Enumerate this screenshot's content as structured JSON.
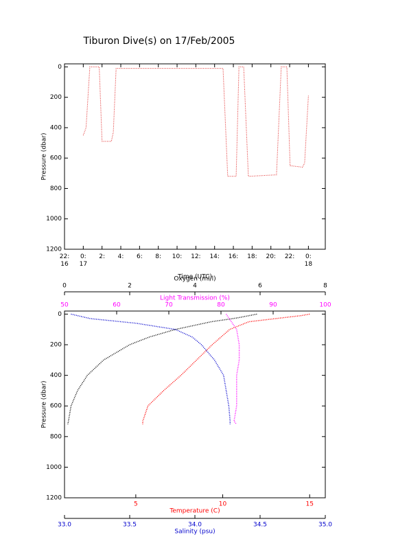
{
  "chart_data": [
    {
      "type": "line",
      "title": "Tiburon Dive(s) on 17/Feb/2005",
      "xlabel": "Time (UTC)",
      "ylabel": "Pressure (dbar)",
      "xlim": [
        0,
        27.8
      ],
      "xticks": [
        {
          "value": 0,
          "label": "22:\n16"
        },
        {
          "value": 2,
          "label": "0:\n17"
        },
        {
          "value": 4,
          "label": "2:"
        },
        {
          "value": 6,
          "label": "4:"
        },
        {
          "value": 8,
          "label": "6:"
        },
        {
          "value": 10,
          "label": "8:"
        },
        {
          "value": 12,
          "label": "10:"
        },
        {
          "value": 14,
          "label": "12:"
        },
        {
          "value": 16,
          "label": "14:"
        },
        {
          "value": 18,
          "label": "16:"
        },
        {
          "value": 20,
          "label": "18:"
        },
        {
          "value": 22,
          "label": "20:"
        },
        {
          "value": 24,
          "label": "22:"
        },
        {
          "value": 26,
          "label": "0:\n18"
        }
      ],
      "ylim": [
        -20,
        1200
      ],
      "yreverse": true,
      "yticks": [
        0,
        200,
        400,
        600,
        800,
        1000,
        1200
      ],
      "series": [
        {
          "color": "#e02020",
          "x": [
            2,
            2.3,
            2.7,
            3.7,
            4,
            5,
            5.2,
            5.5,
            16.9,
            17.4,
            18.3,
            18.6,
            19.1,
            19.6,
            22.6,
            23.1,
            23.7,
            24.05,
            25.4,
            25.6,
            26
          ],
          "values": [
            450,
            400,
            0,
            0,
            490,
            490,
            430,
            10,
            10,
            720,
            720,
            0,
            0,
            720,
            710,
            0,
            0,
            650,
            660,
            630,
            190
          ]
        }
      ]
    },
    {
      "type": "scatter",
      "ylabel": "Pressure (dbar)",
      "ylim": [
        -20,
        1200
      ],
      "yreverse": true,
      "yticks": [
        0,
        200,
        400,
        600,
        800,
        1000,
        1200
      ],
      "axes": [
        {
          "label": "Oxygen (ml/l)",
          "color": "#000000",
          "position": "top-outer",
          "xlim": [
            0,
            8
          ],
          "xticks": [
            0,
            2,
            4,
            6,
            8
          ]
        },
        {
          "label": "Light Transmission (%)",
          "color": "#ff00ff",
          "position": "top",
          "xlim": [
            50,
            100
          ],
          "xticks": [
            50,
            60,
            70,
            80,
            90,
            100
          ]
        },
        {
          "label": "Temperature (C)",
          "color": "#ff0000",
          "position": "bottom",
          "xlim": [
            0.9,
            15.9
          ],
          "xticks": [
            5,
            10,
            15
          ]
        },
        {
          "label": "Salinity (psu)",
          "color": "#0000cc",
          "position": "bottom-outer",
          "xlim": [
            33,
            35
          ],
          "xticks": [
            {
              "value": 33,
              "label": "33.0"
            },
            33.5,
            {
              "value": 34,
              "label": "34.0"
            },
            34.5,
            {
              "value": 35,
              "label": "35.0"
            }
          ]
        }
      ],
      "series": [
        {
          "axis": 0,
          "color": "#000000",
          "x": [
            5.9,
            5.3,
            4.5,
            3.4,
            2.6,
            2.0,
            1.2,
            0.7,
            0.4,
            0.2,
            0.12,
            0.1
          ],
          "values": [
            0,
            25,
            50,
            100,
            150,
            200,
            300,
            400,
            500,
            600,
            700,
            720
          ]
        },
        {
          "axis": 1,
          "color": "#ff00ff",
          "x": [
            81,
            82,
            83,
            83.5,
            83.5,
            83,
            83,
            83,
            82.5,
            83
          ],
          "values": [
            0,
            50,
            100,
            200,
            300,
            400,
            500,
            600,
            700,
            720
          ]
        },
        {
          "axis": 2,
          "color": "#ff0000",
          "x": [
            15.0,
            14.5,
            11.5,
            10.4,
            9.4,
            8.5,
            7.6,
            6.6,
            5.7,
            5.4,
            5.4
          ],
          "values": [
            0,
            10,
            50,
            100,
            200,
            300,
            400,
            500,
            600,
            700,
            720
          ]
        },
        {
          "axis": 3,
          "color": "#0000cc",
          "x": [
            33.05,
            33.2,
            33.55,
            33.85,
            33.98,
            34.05,
            34.15,
            34.22,
            34.24,
            34.26,
            34.27,
            34.27
          ],
          "values": [
            0,
            30,
            60,
            100,
            150,
            200,
            300,
            400,
            500,
            600,
            700,
            720
          ]
        }
      ]
    }
  ]
}
